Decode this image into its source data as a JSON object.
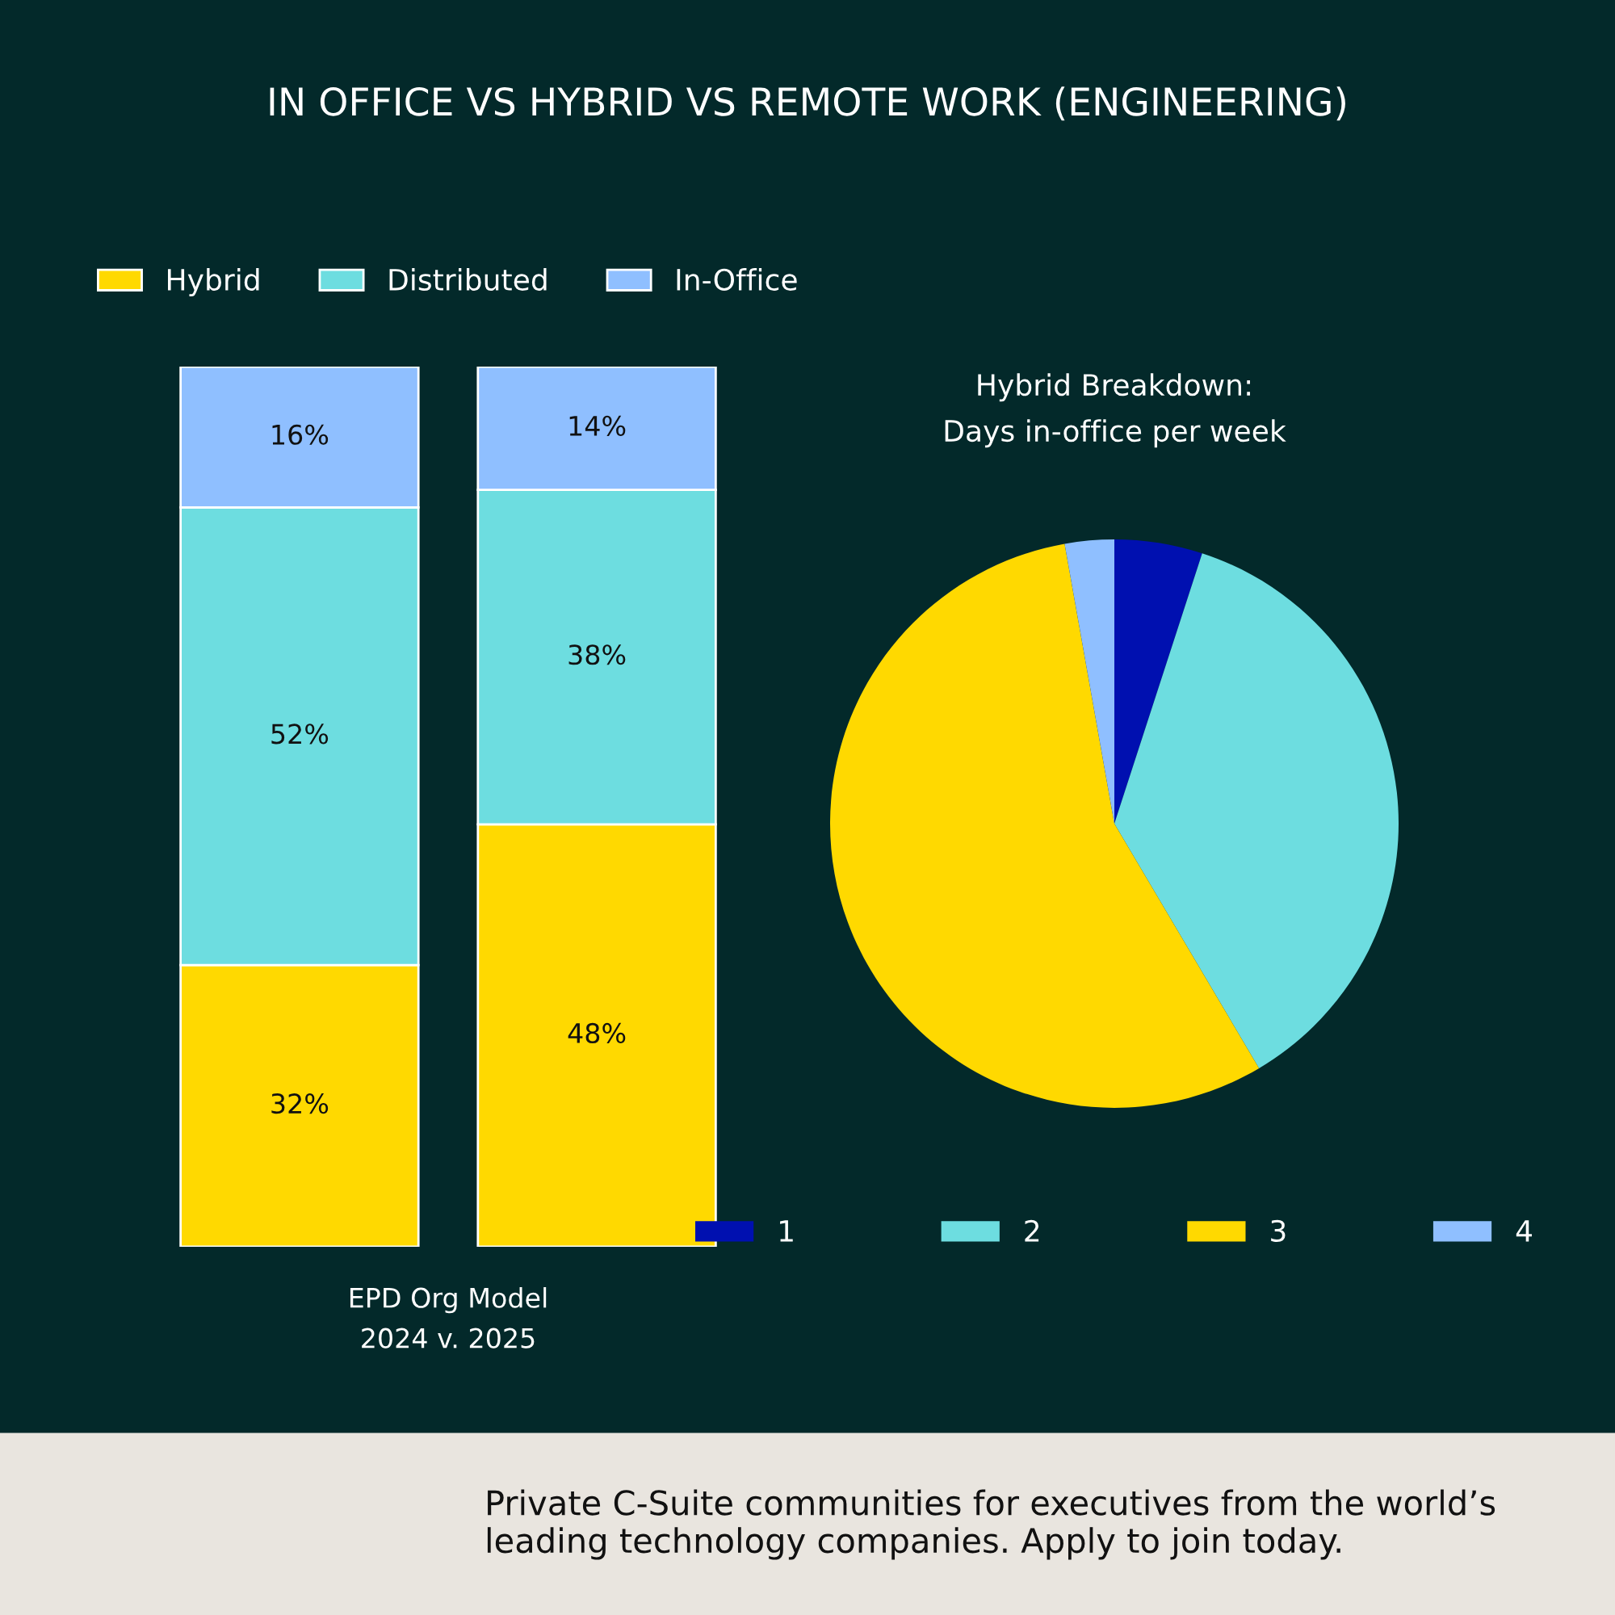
{
  "chart_data": [
    {
      "type": "bar",
      "title": "IN OFFICE VS HYBRID VS REMOTE WORK (ENGINEERING)",
      "xlabel": "EPD Org Model\n2024 v. 2025",
      "categories": [
        null,
        null
      ],
      "stacked": true,
      "legend": "top",
      "tick_labels": false,
      "series": [
        {
          "name": "Hybrid",
          "color": "#ffd900",
          "values": [
            32,
            48
          ],
          "value_labels": [
            "32%",
            "48%"
          ]
        },
        {
          "name": "Distributed",
          "color": "#6ddde0",
          "values": [
            52,
            38
          ],
          "value_labels": [
            "52%",
            "38%"
          ]
        },
        {
          "name": "In-Office",
          "color": "#8fbfff",
          "values": [
            16,
            14
          ],
          "value_labels": [
            "16%",
            "14%"
          ]
        }
      ],
      "annotations": [
        "Private C-Suite communities for executives from the world’s leading technology companies. Apply to join today."
      ]
    },
    {
      "type": "pie",
      "title": "Hybrid Breakdown:\nDays in-office per week",
      "categories": [
        "1",
        "2",
        "3",
        "4"
      ],
      "values": [
        5,
        36.5,
        55.7,
        2.8
      ],
      "colors": [
        "#0010b0",
        "#6ddde0",
        "#ffd900",
        "#8fbfff"
      ],
      "legend": "bottom"
    }
  ]
}
